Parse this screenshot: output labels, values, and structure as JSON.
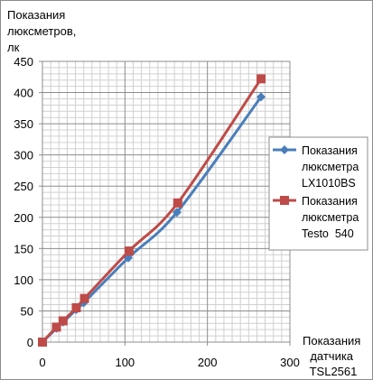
{
  "chart_data": {
    "type": "line",
    "title": "",
    "ylabel": [
      "Показания",
      "люксметров,",
      "лк"
    ],
    "xlabel": [
      "Показания",
      "датчика",
      "TSL2561"
    ],
    "xlim": [
      0,
      300
    ],
    "ylim": [
      0,
      450
    ],
    "x_ticks": [
      "0",
      "100",
      "200",
      "300"
    ],
    "y_ticks": [
      "0",
      "50",
      "100",
      "150",
      "200",
      "250",
      "300",
      "350",
      "400",
      "450"
    ],
    "grid": true,
    "legend_position": "right",
    "series": [
      {
        "name": [
          "Показания",
          "люксметра",
          "LX1010BS"
        ],
        "color": "#4a7ebb",
        "marker": "diamond",
        "points": [
          [
            0,
            0
          ],
          [
            17,
            22
          ],
          [
            25,
            32
          ],
          [
            41,
            52
          ],
          [
            50,
            63
          ],
          [
            104,
            135
          ],
          [
            163,
            208
          ],
          [
            265,
            393
          ]
        ]
      },
      {
        "name": [
          "Показания",
          "люксметра",
          "Testo  540"
        ],
        "color": "#be4b48",
        "marker": "square",
        "points": [
          [
            0,
            0
          ],
          [
            17,
            24
          ],
          [
            25,
            34
          ],
          [
            41,
            55
          ],
          [
            51,
            70
          ],
          [
            105,
            146
          ],
          [
            164,
            223
          ],
          [
            265,
            422
          ]
        ]
      }
    ]
  }
}
